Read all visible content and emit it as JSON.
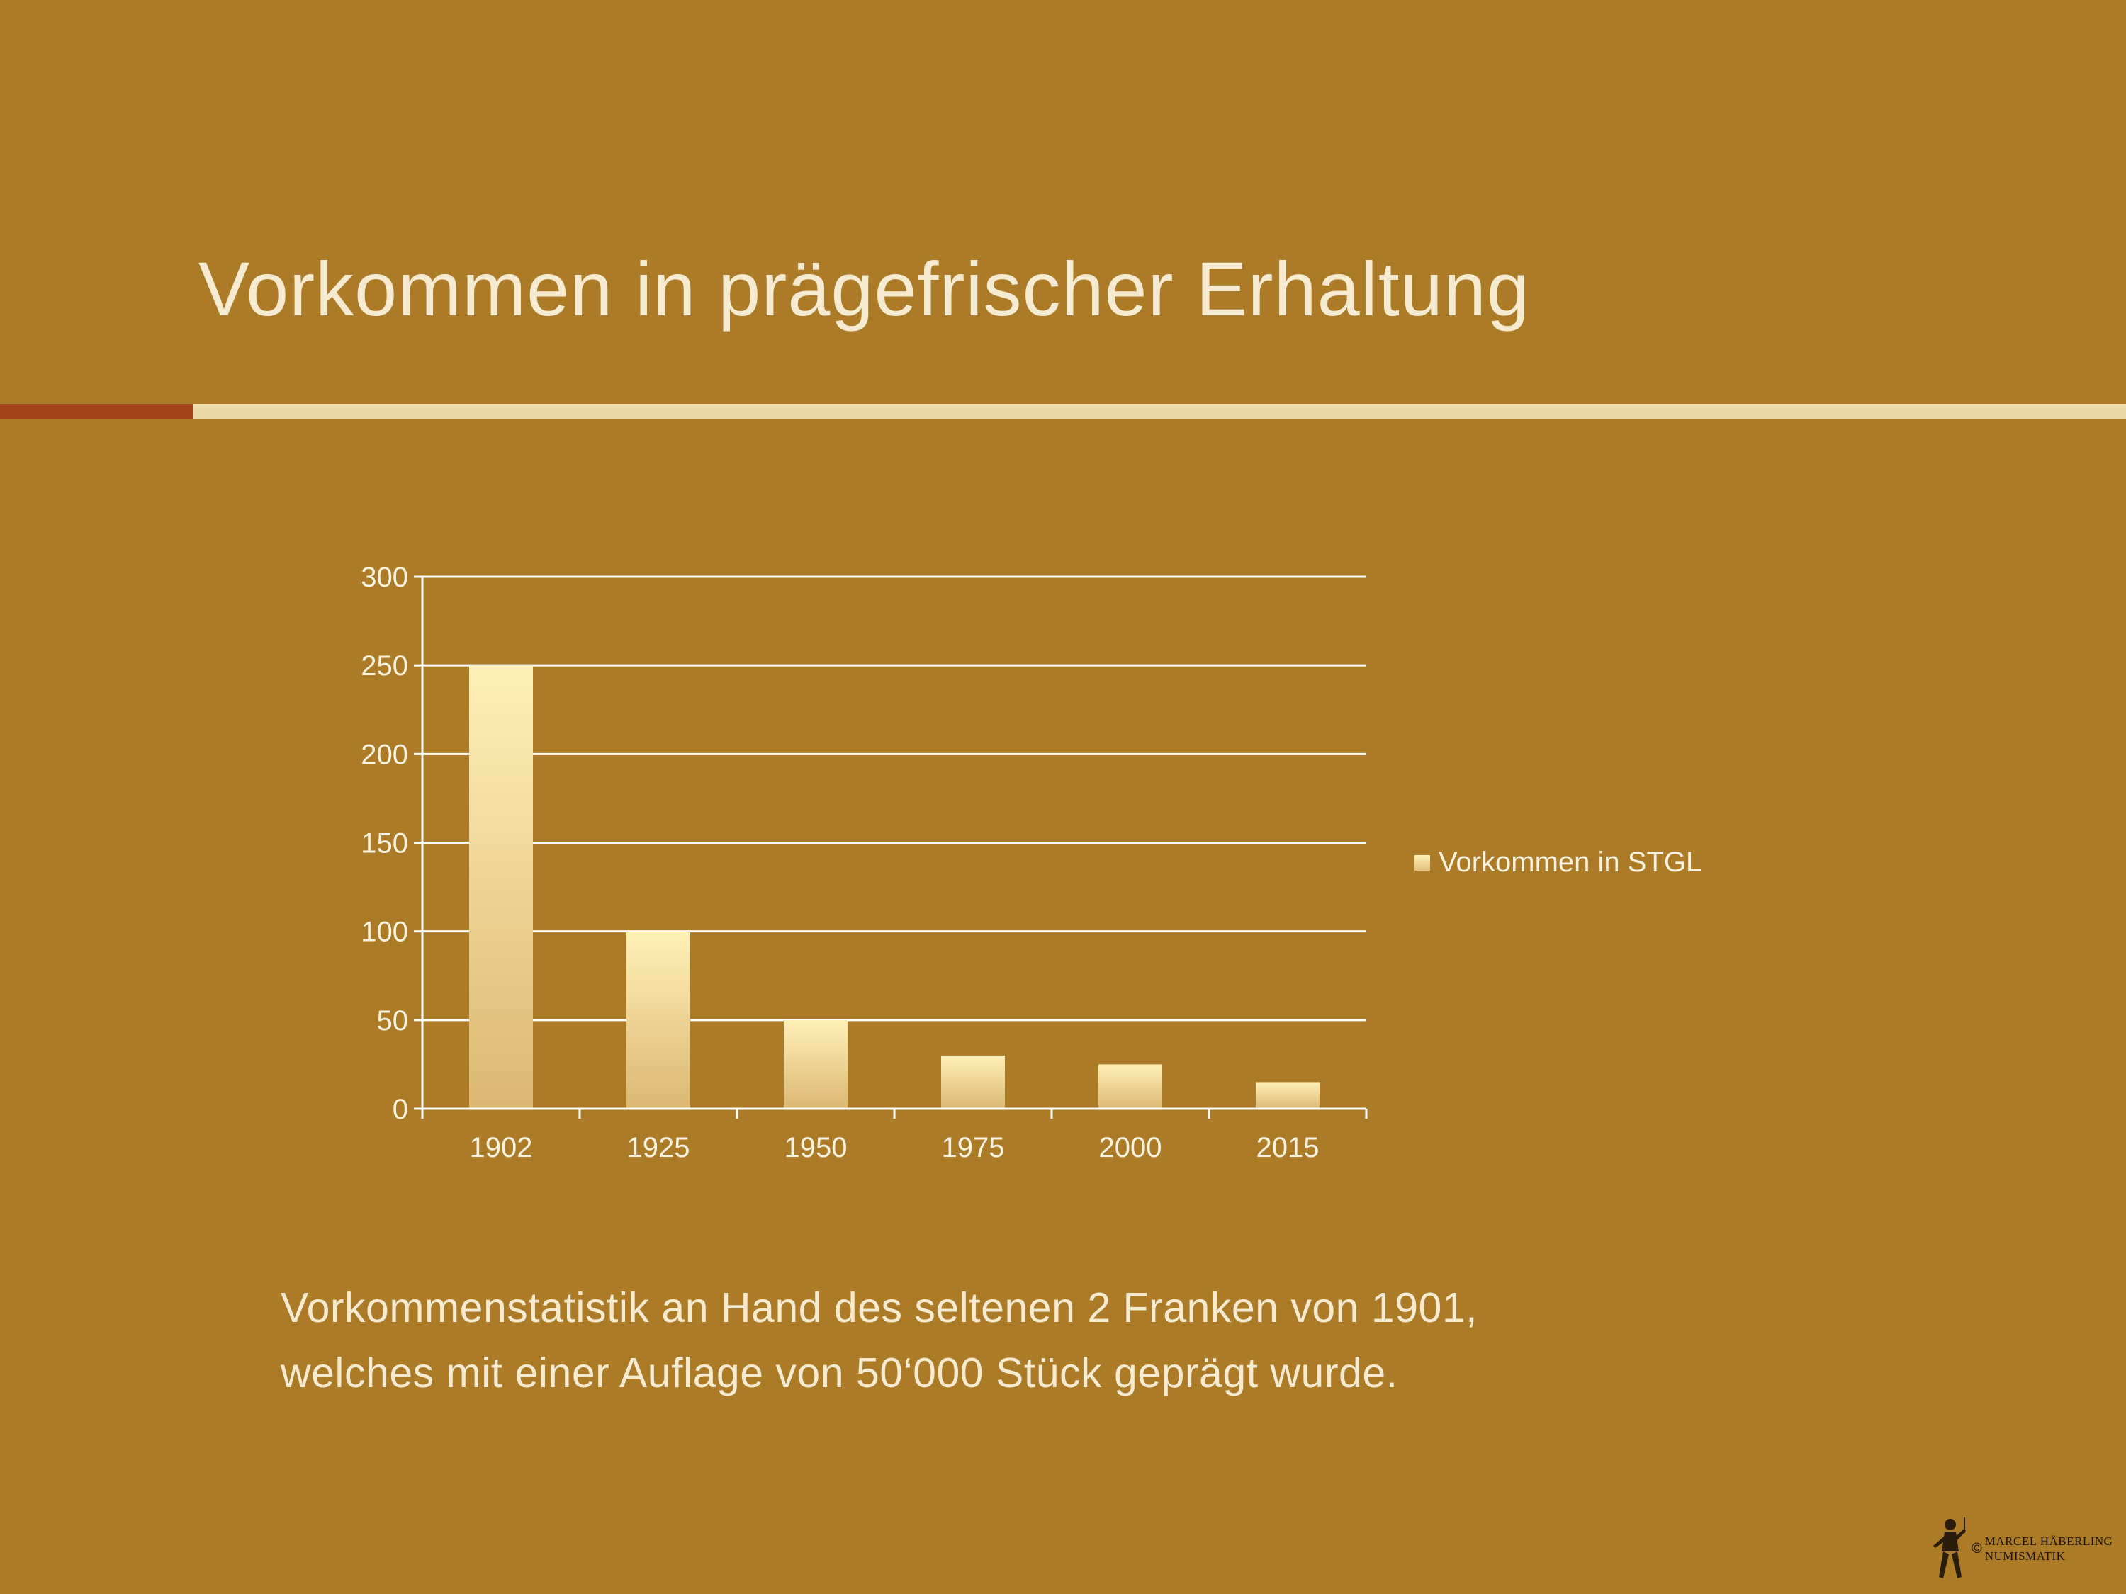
{
  "title": "Vorkommen in prägefrischer Erhaltung",
  "chart_data": {
    "type": "bar",
    "categories": [
      "1902",
      "1925",
      "1950",
      "1975",
      "2000",
      "2015"
    ],
    "series": [
      {
        "name": "Vorkommen in STGL",
        "values": [
          250,
          100,
          50,
          30,
          25,
          15
        ]
      }
    ],
    "ylim": [
      0,
      300
    ],
    "yticks": [
      0,
      50,
      100,
      150,
      200,
      250,
      300
    ],
    "grid": true,
    "legend_position": "right",
    "colors": {
      "bar_top": "#fff0b8",
      "bar_bottom": "#dbb872",
      "axis": "#ffffff",
      "text": "#fbf3df"
    }
  },
  "caption": {
    "line1": "Vorkommenstatistik an Hand des seltenen 2 Franken von 1901,",
    "line2": "welches mit einer Auflage von 50‘000 Stück geprägt wurde."
  },
  "logo": {
    "symbol": "©",
    "line1": "MARCEL HÄBERLING",
    "line2": "NUMISMATIK"
  },
  "colors": {
    "background": "#ab7b28",
    "title": "#f6ead0",
    "rule_accent": "#a2461c",
    "rule_main": "#ecd9a8"
  }
}
